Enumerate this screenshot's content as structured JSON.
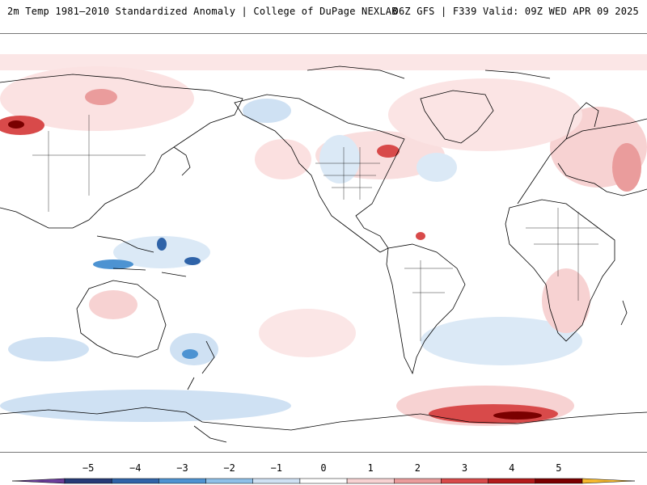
{
  "header": {
    "left_title": "2m Temp 1981–2010 Standardized Anomaly | College of DuPage NEXLAB",
    "right_title": "06Z GFS | F339 Valid: 09Z WED APR 09 2025"
  },
  "colorbar": {
    "labels": [
      "−5",
      "−4",
      "−3",
      "−2",
      "−1",
      "0",
      "1",
      "2",
      "3",
      "4",
      "5"
    ],
    "colors": [
      "#6a3d9a",
      "#253a77",
      "#2f63a8",
      "#4d93d2",
      "#8ec0e8",
      "#cfe1f3",
      "#ffffff",
      "#f7d2d2",
      "#ea9c9c",
      "#d84a4a",
      "#b31b1b",
      "#7a0000",
      "#f5b82e"
    ]
  },
  "map": {
    "land_color": "#ffffff",
    "coast_color": "#000000",
    "warm_color": "#f4c8c8",
    "cold_color": "#cfe1f3"
  }
}
